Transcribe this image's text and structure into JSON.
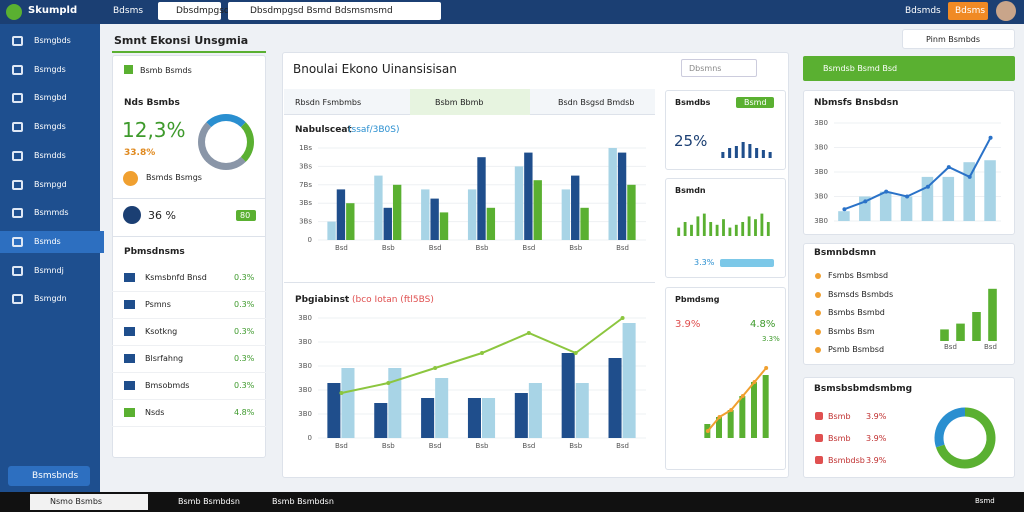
{
  "topbar": {
    "app": "Skumpld",
    "menu": "Bdsms",
    "search1": "Dbsdmpgsd",
    "search2": "Dbsdmpgsd Bsmd Bdsmsmsmd",
    "user": "Bdsmds",
    "button": "Bdsms"
  },
  "sidebar": {
    "items": [
      "Bsmgbds",
      "Bsmgds",
      "Bsmgbd",
      "Bsmgds",
      "Bsmdds",
      "Bsmpgd",
      "Bsmmds",
      "Bsmds",
      "Bsmndj",
      "Bsmgdn"
    ],
    "footer": "Bsmsbnds"
  },
  "page": {
    "title": "Smnt Ekonsi Unsgmia",
    "top_button": "Pinm Bsmbds"
  },
  "left_panel": {
    "badge": "Bsmb Bsmds",
    "kpi_title": "Nds Bsmbs",
    "kpi_value": "12,3%",
    "kpi_sub": "33.8%",
    "kpi_note": "Bsmds Bsmgs",
    "kpi2_value": "36 %",
    "kpi2_badge": "80",
    "list_title": "Pbmsdnsms",
    "rows": [
      {
        "label": "Ksmsbnfd Bnsd",
        "value": "0.3%"
      },
      {
        "label": "Psmns",
        "value": "0.3%"
      },
      {
        "label": "Ksotkng",
        "value": "0.3%"
      },
      {
        "label": "Blsrfahng",
        "value": "0.3%"
      },
      {
        "label": "Bmsobmds",
        "value": "0.3%"
      },
      {
        "label": "Nsds",
        "value": "4.8%"
      }
    ]
  },
  "center": {
    "title": "Bnoulai Ekono Uinansisisan",
    "search": "Dbsmns",
    "tabs": [
      "Rbsdn Fsmbmbs",
      "Bsbm Bbmb",
      "Bsdn Bsgsd Bmdsb"
    ],
    "chart1": {
      "title": "Nabulsceat",
      "subtitle": "(ssaf/3B0S)",
      "ylim": [
        0,
        100
      ],
      "ytick_labels": [
        "1Bs",
        "3Bs",
        "7Bs",
        "3Bs",
        "3Bs",
        "0"
      ],
      "categories": [
        "Bsd",
        "Bsb",
        "Bsd",
        "Bsb",
        "Bsd",
        "Bsb",
        "Bsd"
      ],
      "series": [
        {
          "color": "#a8d4e6",
          "values": [
            20,
            70,
            55,
            55,
            80,
            55,
            100
          ]
        },
        {
          "color": "#1f4e8c",
          "values": [
            55,
            35,
            45,
            90,
            95,
            70,
            95
          ]
        },
        {
          "color": "#5ab031",
          "values": [
            40,
            60,
            30,
            35,
            65,
            35,
            60
          ]
        }
      ]
    },
    "chart2": {
      "title": "Pbgiabinst",
      "subtitle": "(bco Iotan (ftl5BS)",
      "ylim": [
        0,
        120
      ],
      "ytick_labels": [
        "3B0",
        "3B0",
        "3B0",
        "3B0",
        "3B0",
        "0"
      ],
      "categories": [
        "Bsd",
        "Bsb",
        "Bsd",
        "Bsb",
        "Bsd",
        "Bsb",
        "Bsd"
      ],
      "series": [
        {
          "color": "#1f4e8c",
          "values": [
            55,
            35,
            40,
            40,
            45,
            85,
            80
          ]
        },
        {
          "color": "#a8d4e6",
          "values": [
            70,
            70,
            60,
            40,
            55,
            55,
            115
          ]
        }
      ],
      "line": {
        "color": "#8cc63f",
        "values": [
          45,
          55,
          70,
          85,
          105,
          85,
          120
        ]
      }
    },
    "card_a": {
      "title": "Bsmdbs",
      "badge": "Bsmd",
      "value": "25%",
      "bars": {
        "ylim": [
          0,
          10
        ],
        "color": "#1f4e8c",
        "values": [
          3,
          5,
          6,
          8,
          7,
          5,
          4,
          3
        ]
      }
    },
    "card_b": {
      "title": "Bsmdn",
      "value": "3.3%",
      "bars": {
        "ylim": [
          0,
          10
        ],
        "color": "#5ab031",
        "values": [
          3,
          5,
          4,
          7,
          8,
          5,
          4,
          6,
          3,
          4,
          5,
          7,
          6,
          8,
          5
        ]
      }
    },
    "card_c": {
      "title": "Pbmdsmg",
      "value_left": "3.9%",
      "value_right": "4.8%",
      "value_small": "3.3%",
      "bars": {
        "ylim": [
          0,
          10
        ],
        "color": "#5ab031",
        "values": [
          2,
          3,
          4,
          6,
          8,
          9
        ]
      },
      "line": {
        "color": "#f0a030",
        "values": [
          1,
          3,
          4,
          6,
          8,
          10
        ]
      }
    }
  },
  "right": {
    "button": "Bsmdsb Bsmd Bsd",
    "line_card": {
      "title": "Nbmsfs Bnsbdsn",
      "ytick_labels": [
        "3B0",
        "3B0",
        "3B0",
        "3B0",
        "3B0"
      ],
      "ylim": [
        0,
        100
      ],
      "bars": {
        "color": "#a8d4e6",
        "values": [
          10,
          25,
          30,
          25,
          45,
          45,
          60,
          62
        ]
      },
      "line": {
        "color": "#2a72c8",
        "values": [
          12,
          20,
          30,
          25,
          35,
          55,
          45,
          85
        ]
      }
    },
    "list_card": {
      "title": "Bsmnbdsmn",
      "items": [
        "Fsmbs Bsmbsd",
        "Bsmsds Bsmbds",
        "Bsmbs Bsmbd",
        "Bsmbs Bsm",
        "Psmb Bsmbsd"
      ],
      "bars": {
        "ylim": [
          0,
          10
        ],
        "color": "#5ab031",
        "values": [
          2,
          3,
          5,
          9
        ]
      },
      "labels": [
        "Bsd",
        "Bsd"
      ]
    },
    "donut_card": {
      "title": "Bsmsbsbmdsmbmg",
      "rows": [
        {
          "label": "Bsmb",
          "value": "3.9%"
        },
        {
          "label": "Bsmb",
          "value": "3.9%"
        },
        {
          "label": "Bsmbdsb",
          "value": "3.9%"
        }
      ],
      "donut": {
        "colors": [
          "#5ab031",
          "#2a8fd0"
        ],
        "values": [
          70,
          30
        ]
      }
    }
  },
  "taskbar": {
    "search": "Nsmo Bsmbs",
    "apps": [
      "Bsmb Bsmbdsn",
      "Bsmb Bsmbdsn"
    ],
    "clock": "Bsmd"
  }
}
